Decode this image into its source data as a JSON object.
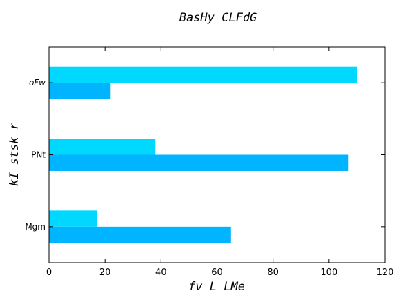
{
  "chart_data": {
    "type": "bar",
    "orientation": "horizontal",
    "title": "BasHy CLFdG",
    "xlabel": "fv L LMe",
    "ylabel": "kI stsk r",
    "categories": [
      "Mgm",
      "PNt",
      "oFw"
    ],
    "series": [
      {
        "color": "#00b4ff",
        "values": [
          65,
          107,
          22
        ]
      },
      {
        "color": "#00d8ff",
        "values": [
          17,
          38,
          110
        ]
      }
    ],
    "xlim": [
      0,
      120
    ],
    "xticks": [
      0,
      20,
      40,
      60,
      80,
      100,
      120
    ],
    "grid": false
  }
}
